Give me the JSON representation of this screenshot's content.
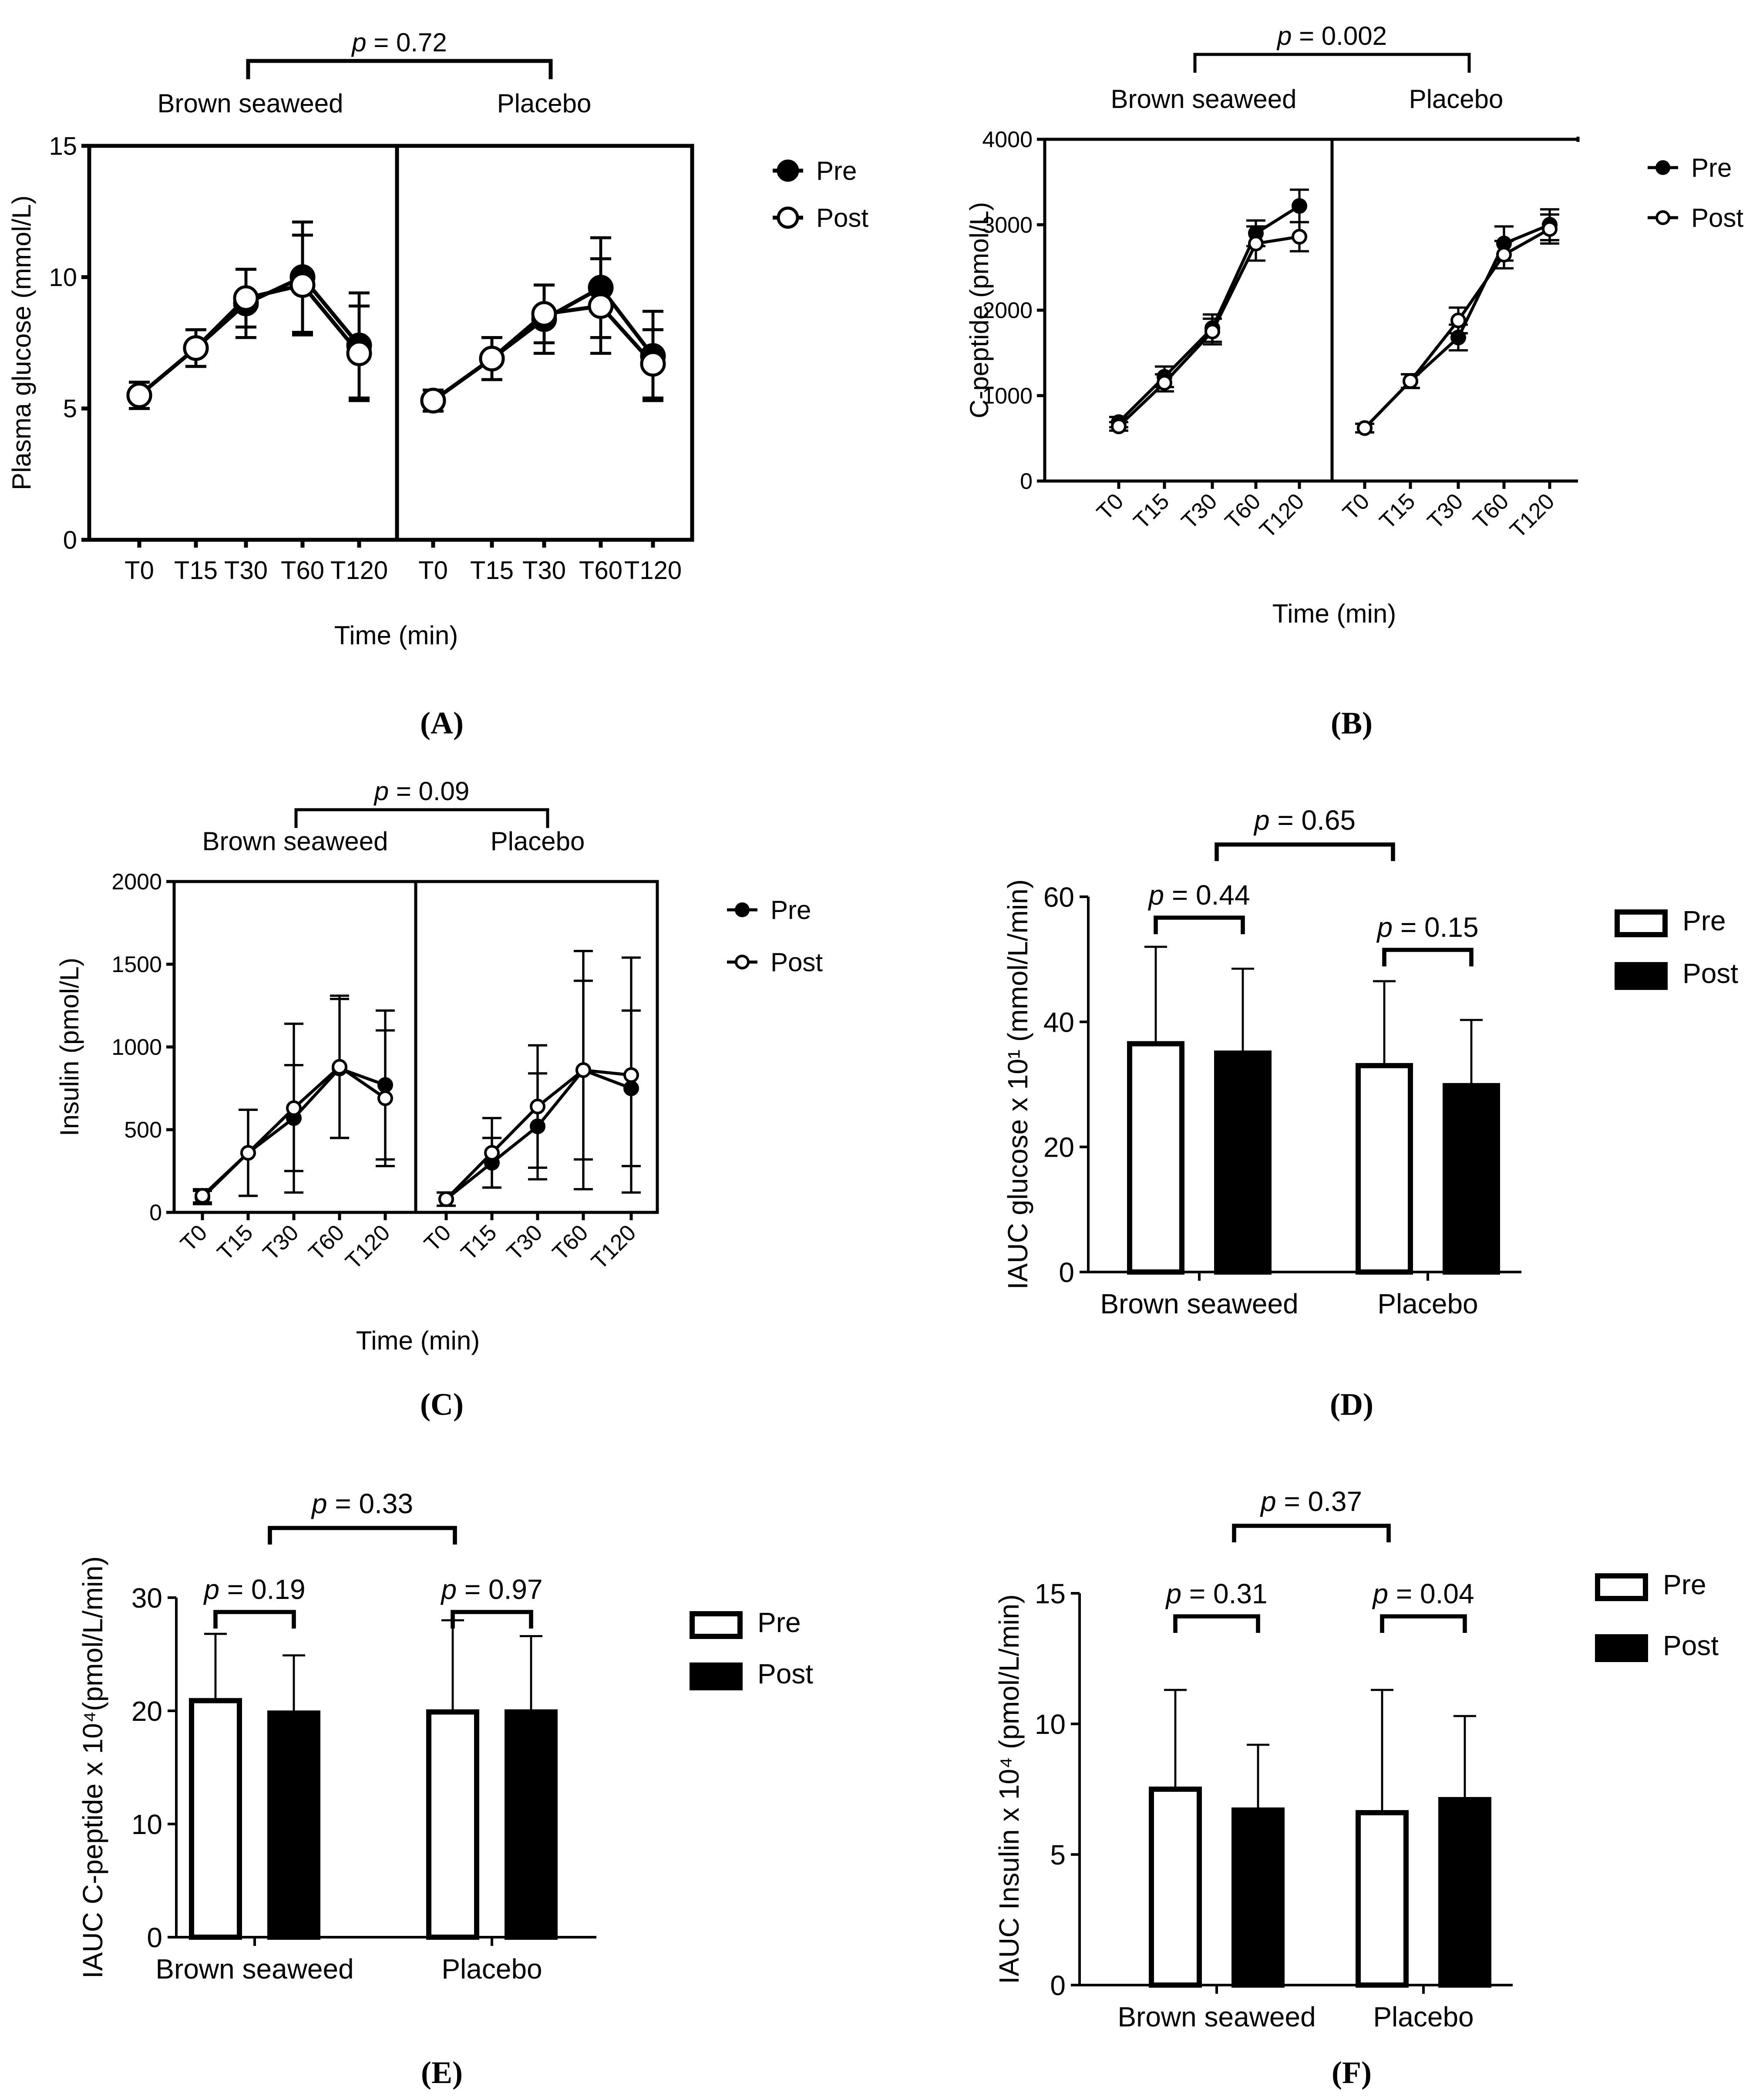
{
  "figure": {
    "captions": [
      "(A)",
      "(B)",
      "(C)",
      "(D)",
      "(E)",
      "(F)"
    ]
  },
  "colors": {
    "ink": "#000000",
    "background": "#ffffff"
  },
  "chart_data": [
    {
      "id": "A",
      "type": "line",
      "ylabel": "Plasma glucose (mmol/L)",
      "xlabel": "Time (min)",
      "ylim": [
        0,
        15
      ],
      "yticks": [
        0,
        5,
        10,
        15
      ],
      "groups": [
        "Brown seaweed",
        "Placebo"
      ],
      "categories": [
        "T0",
        "T15",
        "T30",
        "T60",
        "T120"
      ],
      "tick_rotation": 0,
      "marker": "large",
      "comparison": {
        "label": "p = 0.72",
        "p_symbol": "p",
        "p_rest": " = 0.72"
      },
      "legend": [
        "Pre",
        "Post"
      ],
      "series": [
        {
          "name": "Pre",
          "filled": true,
          "groups": [
            {
              "values": [
                5.5,
                7.3,
                9.0,
                10.0,
                7.4
              ],
              "errors": [
                0.5,
                0.7,
                1.3,
                2.1,
                2.0
              ]
            },
            {
              "values": [
                5.3,
                6.9,
                8.4,
                9.6,
                7.0
              ],
              "errors": [
                0.4,
                0.8,
                1.3,
                1.9,
                1.7
              ]
            }
          ]
        },
        {
          "name": "Post",
          "filled": false,
          "groups": [
            {
              "values": [
                5.5,
                7.3,
                9.2,
                9.7,
                7.1
              ],
              "errors": [
                0.5,
                0.7,
                1.1,
                1.9,
                1.8
              ]
            },
            {
              "values": [
                5.3,
                6.9,
                8.6,
                8.9,
                6.7
              ],
              "errors": [
                0.4,
                0.8,
                1.1,
                1.8,
                1.3
              ]
            }
          ]
        }
      ]
    },
    {
      "id": "B",
      "type": "line",
      "ylabel": "C-peptide (pmol/L)",
      "xlabel": "Time (min)",
      "ylim": [
        0,
        4000
      ],
      "yticks": [
        0,
        1000,
        2000,
        3000,
        4000
      ],
      "groups": [
        "Brown seaweed",
        "Placebo"
      ],
      "categories": [
        "T0",
        "T15",
        "T30",
        "T60",
        "T120"
      ],
      "tick_rotation": -45,
      "marker": "small",
      "comparison": {
        "label": "p = 0.002",
        "p_symbol": "p",
        "p_rest": " = 0.002"
      },
      "legend": [
        "Pre",
        "Post"
      ],
      "series": [
        {
          "name": "Pre",
          "filled": true,
          "groups": [
            {
              "values": [
                690,
                1220,
                1790,
                2900,
                3220
              ],
              "errors": [
                60,
                120,
                160,
                150,
                190
              ]
            },
            {
              "values": [
                620,
                1170,
                1680,
                2780,
                3000
              ],
              "errors": [
                50,
                80,
                150,
                200,
                180
              ]
            }
          ]
        },
        {
          "name": "Post",
          "filled": false,
          "groups": [
            {
              "values": [
                640,
                1150,
                1750,
                2780,
                2860
              ],
              "errors": [
                50,
                100,
                150,
                200,
                170
              ]
            },
            {
              "values": [
                620,
                1170,
                1880,
                2650,
                2950
              ],
              "errors": [
                50,
                80,
                150,
                160,
                170
              ]
            }
          ]
        }
      ]
    },
    {
      "id": "C",
      "type": "line",
      "ylabel": "Insulin (pmol/L)",
      "xlabel": "Time (min)",
      "ylim": [
        0,
        2000
      ],
      "yticks": [
        0,
        500,
        1000,
        1500,
        2000
      ],
      "groups": [
        "Brown seaweed",
        "Placebo"
      ],
      "categories": [
        "T0",
        "T15",
        "T30",
        "T60",
        "T120"
      ],
      "tick_rotation": -45,
      "marker": "small",
      "comparison": {
        "label": "p = 0.09",
        "p_symbol": "p",
        "p_rest": " = 0.09"
      },
      "legend": [
        "Pre",
        "Post"
      ],
      "series": [
        {
          "name": "Pre",
          "filled": true,
          "groups": [
            {
              "values": [
                90,
                360,
                570,
                870,
                770
              ],
              "errors": [
                40,
                260,
                320,
                420,
                450
              ]
            },
            {
              "values": [
                80,
                300,
                520,
                860,
                750
              ],
              "errors": [
                40,
                150,
                320,
                540,
                470
              ]
            }
          ]
        },
        {
          "name": "Post",
          "filled": false,
          "groups": [
            {
              "values": [
                100,
                360,
                630,
                880,
                690
              ],
              "errors": [
                40,
                260,
                510,
                430,
                410
              ]
            },
            {
              "values": [
                80,
                360,
                640,
                860,
                830
              ],
              "errors": [
                40,
                210,
                370,
                720,
                710
              ]
            }
          ]
        }
      ]
    },
    {
      "id": "D",
      "type": "bar",
      "ylabel": "IAUC glucose x 10¹ (mmol/L/min)",
      "categories": [
        "Brown seaweed",
        "Placebo"
      ],
      "ylim": [
        0,
        60
      ],
      "yticks": [
        0,
        20,
        40,
        60
      ],
      "legend": [
        "Pre",
        "Post"
      ],
      "series": [
        {
          "name": "Pre",
          "values": [
            36.5,
            33.0
          ],
          "errors": [
            15.5,
            13.5
          ]
        },
        {
          "name": "Post",
          "values": [
            35.0,
            29.8
          ],
          "errors": [
            13.5,
            10.5
          ]
        }
      ],
      "within": [
        {
          "label": "p = 0.44",
          "p_symbol": "p",
          "p_rest": " = 0.44"
        },
        {
          "label": "p = 0.15",
          "p_symbol": "p",
          "p_rest": " = 0.15"
        }
      ],
      "between": {
        "label": "p = 0.65",
        "p_symbol": "p",
        "p_rest": " = 0.65"
      }
    },
    {
      "id": "E",
      "type": "bar",
      "ylabel": "IAUC C-peptide x 10⁴(pmol/L/min)",
      "categories": [
        "Brown seaweed",
        "Placebo"
      ],
      "ylim": [
        0,
        30
      ],
      "yticks": [
        0,
        10,
        20,
        30
      ],
      "legend": [
        "Pre",
        "Post"
      ],
      "series": [
        {
          "name": "Pre",
          "values": [
            20.9,
            19.9
          ],
          "errors": [
            5.9,
            8.1
          ]
        },
        {
          "name": "Post",
          "values": [
            19.8,
            19.9
          ],
          "errors": [
            5.1,
            6.7
          ]
        }
      ],
      "within": [
        {
          "label": "p = 0.19",
          "p_symbol": "p",
          "p_rest": " = 0.19"
        },
        {
          "label": "p = 0.97",
          "p_symbol": "p",
          "p_rest": " = 0.97"
        }
      ],
      "between": {
        "label": "p = 0.33",
        "p_symbol": "p",
        "p_rest": " = 0.33"
      }
    },
    {
      "id": "F",
      "type": "bar",
      "ylabel": "IAUC Insulin x 10⁴ (pmol/L/min)",
      "categories": [
        "Brown seaweed",
        "Placebo"
      ],
      "ylim": [
        0,
        15
      ],
      "yticks": [
        0,
        5,
        10,
        15
      ],
      "legend": [
        "Pre",
        "Post"
      ],
      "series": [
        {
          "name": "Pre",
          "values": [
            7.5,
            6.6
          ],
          "errors": [
            3.8,
            4.7
          ]
        },
        {
          "name": "Post",
          "values": [
            6.7,
            7.1
          ],
          "errors": [
            2.5,
            3.2
          ]
        }
      ],
      "within": [
        {
          "label": "p = 0.31",
          "p_symbol": "p",
          "p_rest": " = 0.31"
        },
        {
          "label": "p = 0.04",
          "p_symbol": "p",
          "p_rest": " = 0.04"
        }
      ],
      "between": {
        "label": "p = 0.37",
        "p_symbol": "p",
        "p_rest": " = 0.37"
      }
    }
  ]
}
